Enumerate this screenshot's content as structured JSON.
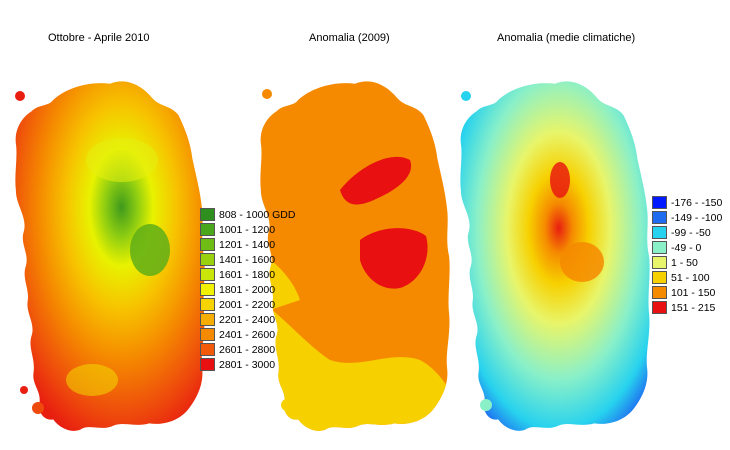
{
  "maps": [
    {
      "title": "Ottobre - Aprile 2010",
      "legend": [
        {
          "label": "808 - 1000 GDD",
          "color": "#2f8f1e"
        },
        {
          "label": "1001 - 1200",
          "color": "#4aa61a"
        },
        {
          "label": "1201 - 1400",
          "color": "#6fbd14"
        },
        {
          "label": "1401 - 1600",
          "color": "#99d10f"
        },
        {
          "label": "1601 - 1800",
          "color": "#c9e60a"
        },
        {
          "label": "1801 - 2000",
          "color": "#f2f200"
        },
        {
          "label": "2001 - 2200",
          "color": "#f7d400"
        },
        {
          "label": "2201 - 2400",
          "color": "#f7ad00"
        },
        {
          "label": "2401 - 2600",
          "color": "#f58a00"
        },
        {
          "label": "2601 - 2800",
          "color": "#f25a0a"
        },
        {
          "label": "2801 - 3000",
          "color": "#e81010"
        }
      ]
    },
    {
      "title": "Anomalia (2009)",
      "legend": []
    },
    {
      "title": "Anomalia (medie climatiche)",
      "legend": [
        {
          "label": "-176 - -150",
          "color": "#0019ff"
        },
        {
          "label": "-149 - -100",
          "color": "#1f6cf0"
        },
        {
          "label": "-99 - -50",
          "color": "#27d2ee"
        },
        {
          "label": "-49 - 0",
          "color": "#8af0c8"
        },
        {
          "label": "1 - 50",
          "color": "#e8f56a"
        },
        {
          "label": "51 - 100",
          "color": "#f7d000"
        },
        {
          "label": "101 - 150",
          "color": "#f58a00"
        },
        {
          "label": "151 - 215",
          "color": "#e81010"
        }
      ]
    }
  ]
}
